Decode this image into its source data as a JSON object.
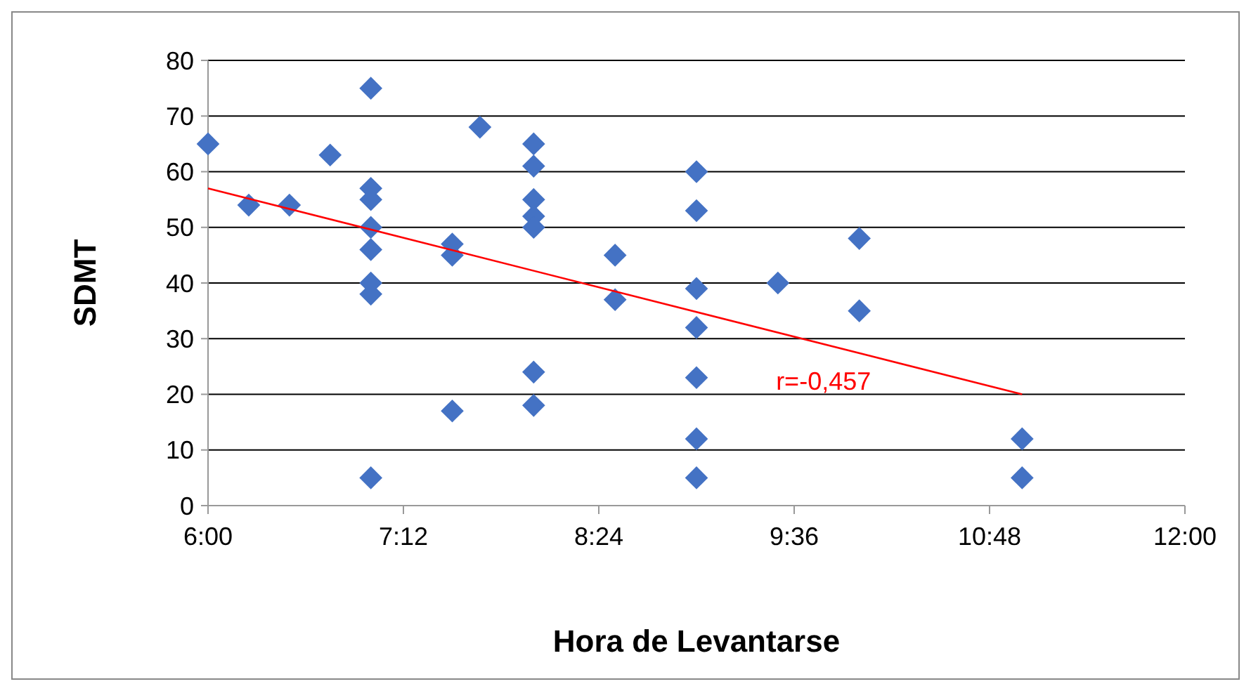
{
  "chart_data": {
    "type": "scatter",
    "xlabel": "Hora de Levantarse",
    "ylabel": "SDMT",
    "xlim": [
      6,
      12
    ],
    "xticks": [
      {
        "value": 6,
        "label": "6:00"
      },
      {
        "value": 7.2,
        "label": "7:12"
      },
      {
        "value": 8.4,
        "label": "8:24"
      },
      {
        "value": 9.6,
        "label": "9:36"
      },
      {
        "value": 10.8,
        "label": "10:48"
      },
      {
        "value": 12,
        "label": "12:00"
      }
    ],
    "ylim": [
      0,
      80
    ],
    "yticks": [
      0,
      10,
      20,
      30,
      40,
      50,
      60,
      70,
      80
    ],
    "grid": "y",
    "series": [
      {
        "marker": "diamond",
        "color": "#4472c4",
        "x": [
          6,
          6.25,
          6.5,
          6.75,
          7,
          7,
          7,
          7,
          7,
          7,
          7,
          7,
          7.5,
          7.5,
          7.5,
          7.67,
          8,
          8,
          8,
          8,
          8,
          8,
          8,
          8.5,
          8.5,
          9,
          9,
          9,
          9,
          9,
          9,
          9,
          9.5,
          10,
          10,
          11,
          11
        ],
        "values": [
          65,
          54,
          54,
          63,
          75,
          57,
          55,
          50,
          46,
          40,
          38,
          5,
          47,
          45,
          17,
          68,
          65,
          61,
          55,
          52,
          50,
          24,
          18,
          45,
          37,
          60,
          53,
          39,
          32,
          23,
          12,
          5,
          40,
          48,
          35,
          12,
          5
        ]
      },
      {
        "type": "line",
        "marker": "none",
        "color": "#ff0000",
        "x": [
          6,
          11
        ],
        "values": [
          57,
          20
        ]
      }
    ],
    "annotations": [
      "r=-0,457"
    ]
  }
}
